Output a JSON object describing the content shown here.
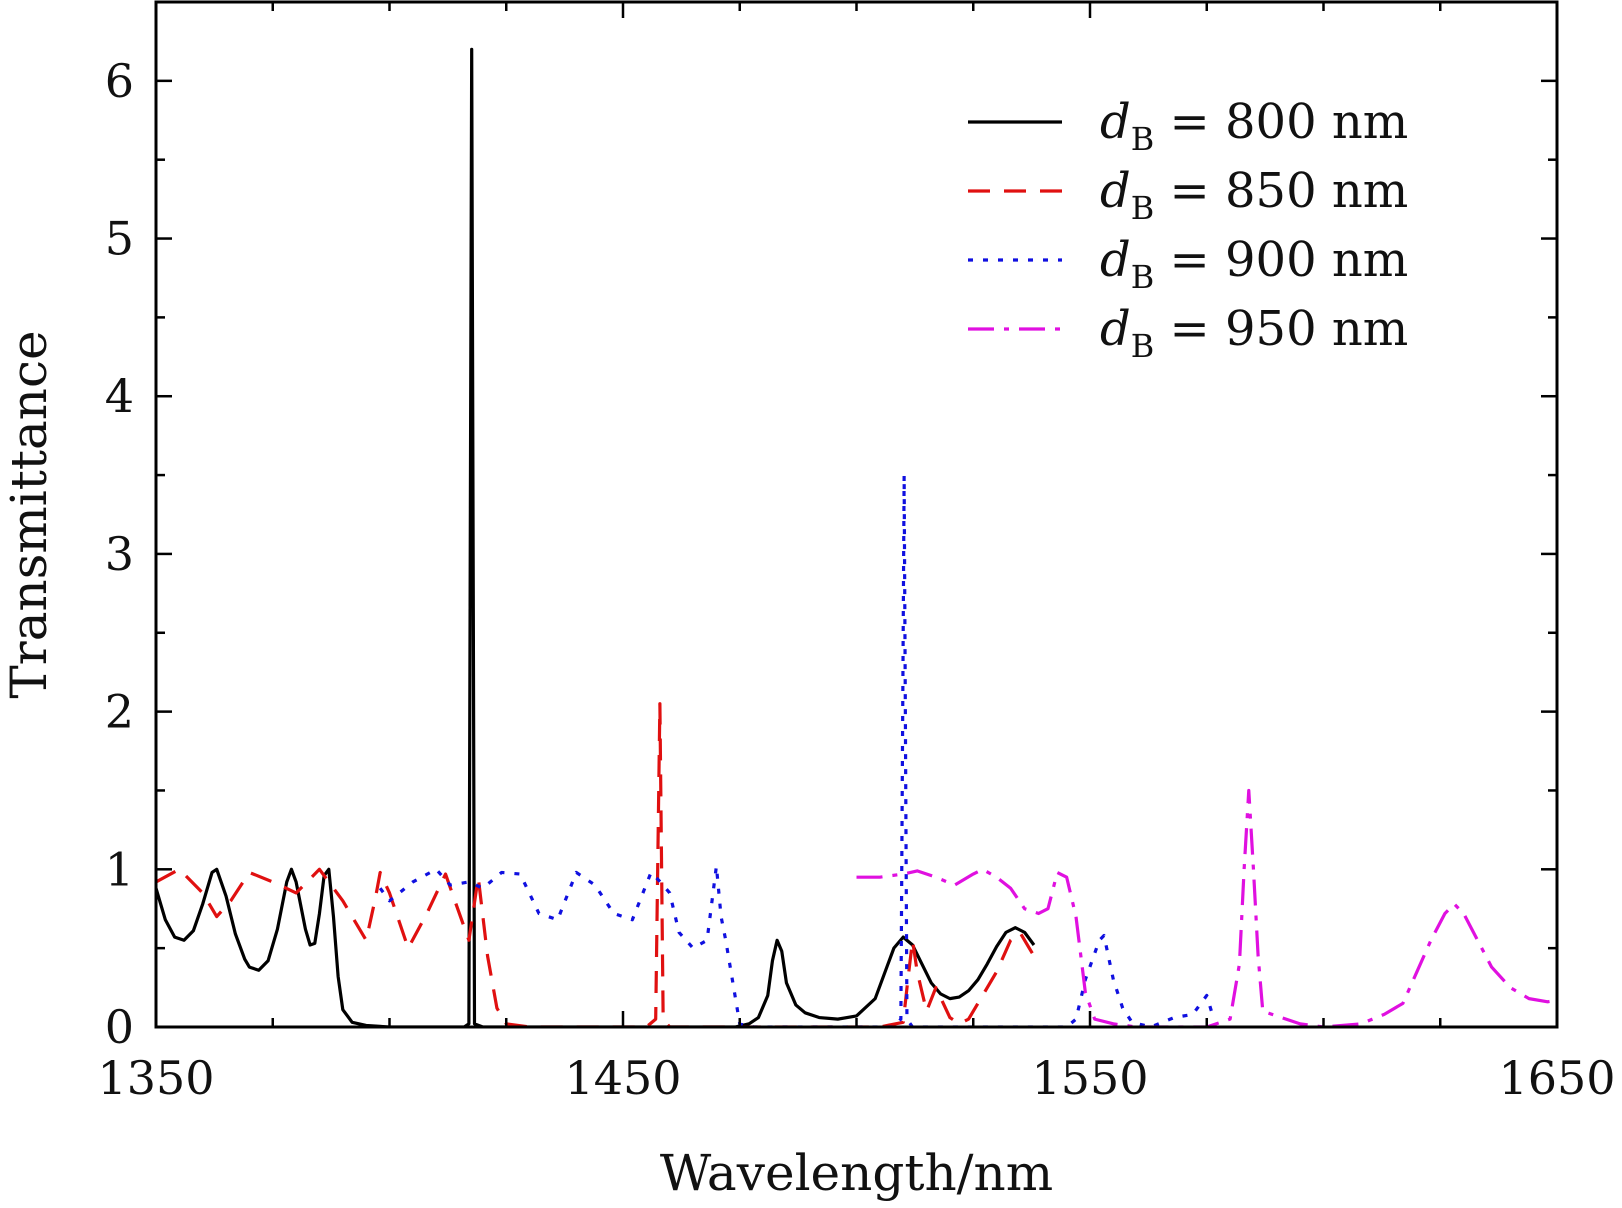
{
  "chart_data": {
    "type": "line",
    "title": "",
    "xlabel": "Wavelength/nm",
    "ylabel": "Transmittance",
    "xlim": [
      1350,
      1650
    ],
    "ylim": [
      0,
      6.5
    ],
    "x_ticks": [
      1350,
      1450,
      1550,
      1650
    ],
    "x_tick_labels": [
      "1350",
      "1450",
      "1550",
      "1650"
    ],
    "y_ticks": [
      0,
      1,
      2,
      3,
      4,
      5,
      6
    ],
    "y_tick_labels": [
      "0",
      "1",
      "2",
      "3",
      "4",
      "5",
      "6"
    ],
    "grid": false,
    "legend_position": "top-right",
    "series": [
      {
        "name": "d_B = 800 nm",
        "label_prefix": "d",
        "label_sub": "B",
        "label_value": " = 800 nm",
        "color": "#000000",
        "dash": "solid",
        "points": [
          [
            1350,
            0.88
          ],
          [
            1352,
            0.68
          ],
          [
            1354,
            0.57
          ],
          [
            1356,
            0.55
          ],
          [
            1358,
            0.61
          ],
          [
            1360,
            0.78
          ],
          [
            1362,
            0.98
          ],
          [
            1363,
            1.0
          ],
          [
            1365,
            0.83
          ],
          [
            1367,
            0.59
          ],
          [
            1369,
            0.43
          ],
          [
            1370,
            0.38
          ],
          [
            1372,
            0.36
          ],
          [
            1374,
            0.42
          ],
          [
            1376,
            0.62
          ],
          [
            1378,
            0.92
          ],
          [
            1379,
            1.0
          ],
          [
            1380,
            0.92
          ],
          [
            1382,
            0.62
          ],
          [
            1383,
            0.52
          ],
          [
            1384,
            0.53
          ],
          [
            1385,
            0.72
          ],
          [
            1386,
            0.96
          ],
          [
            1387,
            1.0
          ],
          [
            1388,
            0.7
          ],
          [
            1389,
            0.32
          ],
          [
            1390,
            0.11
          ],
          [
            1392,
            0.03
          ],
          [
            1395,
            0.01
          ],
          [
            1400,
            0.0
          ],
          [
            1416,
            0.0
          ],
          [
            1417,
            0.02
          ],
          [
            1417.6,
            6.2
          ],
          [
            1418.2,
            0.02
          ],
          [
            1420,
            0.0
          ],
          [
            1470,
            0.0
          ],
          [
            1474,
            0.0
          ],
          [
            1477,
            0.02
          ],
          [
            1479,
            0.06
          ],
          [
            1481,
            0.2
          ],
          [
            1482,
            0.42
          ],
          [
            1483,
            0.55
          ],
          [
            1484,
            0.48
          ],
          [
            1485,
            0.28
          ],
          [
            1487,
            0.14
          ],
          [
            1489,
            0.09
          ],
          [
            1492,
            0.06
          ],
          [
            1496,
            0.05
          ],
          [
            1500,
            0.07
          ],
          [
            1504,
            0.18
          ],
          [
            1506,
            0.34
          ],
          [
            1508,
            0.5
          ],
          [
            1510,
            0.57
          ],
          [
            1512,
            0.52
          ],
          [
            1514,
            0.4
          ],
          [
            1516,
            0.28
          ],
          [
            1518,
            0.21
          ],
          [
            1520,
            0.18
          ],
          [
            1522,
            0.19
          ],
          [
            1524,
            0.23
          ],
          [
            1526,
            0.3
          ],
          [
            1528,
            0.4
          ],
          [
            1530,
            0.51
          ],
          [
            1532,
            0.6
          ],
          [
            1534,
            0.63
          ],
          [
            1536,
            0.6
          ],
          [
            1538,
            0.52
          ]
        ]
      },
      {
        "name": "d_B = 850 nm",
        "label_prefix": "d",
        "label_sub": "B",
        "label_value": " = 850 nm",
        "color": "#e01010",
        "dash": "22 14",
        "points": [
          [
            1350,
            0.92
          ],
          [
            1355,
            1.0
          ],
          [
            1360,
            0.85
          ],
          [
            1363,
            0.7
          ],
          [
            1366,
            0.8
          ],
          [
            1370,
            0.98
          ],
          [
            1375,
            0.92
          ],
          [
            1380,
            0.85
          ],
          [
            1385,
            1.0
          ],
          [
            1390,
            0.8
          ],
          [
            1395,
            0.55
          ],
          [
            1397,
            0.82
          ],
          [
            1398,
            0.98
          ],
          [
            1400,
            0.85
          ],
          [
            1404,
            0.5
          ],
          [
            1408,
            0.72
          ],
          [
            1412,
            0.97
          ],
          [
            1414,
            0.8
          ],
          [
            1417,
            0.55
          ],
          [
            1419,
            0.95
          ],
          [
            1421,
            0.45
          ],
          [
            1423,
            0.12
          ],
          [
            1425,
            0.02
          ],
          [
            1430,
            0.0
          ],
          [
            1455,
            0.0
          ],
          [
            1457,
            0.05
          ],
          [
            1457.9,
            2.05
          ],
          [
            1458.6,
            0.05
          ],
          [
            1460,
            0.0
          ],
          [
            1505,
            0.0
          ],
          [
            1510,
            0.03
          ],
          [
            1511,
            0.3
          ],
          [
            1512,
            0.55
          ],
          [
            1513,
            0.35
          ],
          [
            1515,
            0.1
          ],
          [
            1517,
            0.25
          ],
          [
            1520,
            0.06
          ],
          [
            1522,
            0.02
          ],
          [
            1524,
            0.05
          ],
          [
            1526,
            0.15
          ],
          [
            1530,
            0.35
          ],
          [
            1533,
            0.55
          ],
          [
            1535,
            0.6
          ],
          [
            1537,
            0.5
          ],
          [
            1538,
            0.45
          ]
        ]
      },
      {
        "name": "d_B = 900 nm",
        "label_prefix": "d",
        "label_sub": "B",
        "label_value": " = 900 nm",
        "color": "#1010e0",
        "dash": "5 10",
        "points": [
          [
            1398,
            0.88
          ],
          [
            1400,
            0.8
          ],
          [
            1405,
            0.92
          ],
          [
            1410,
            1.0
          ],
          [
            1413,
            0.9
          ],
          [
            1417,
            0.92
          ],
          [
            1420,
            0.88
          ],
          [
            1424,
            0.98
          ],
          [
            1428,
            0.97
          ],
          [
            1432,
            0.72
          ],
          [
            1436,
            0.68
          ],
          [
            1440,
            0.98
          ],
          [
            1444,
            0.9
          ],
          [
            1448,
            0.72
          ],
          [
            1452,
            0.68
          ],
          [
            1456,
            0.98
          ],
          [
            1458,
            0.92
          ],
          [
            1460,
            0.85
          ],
          [
            1462,
            0.6
          ],
          [
            1465,
            0.5
          ],
          [
            1468,
            0.55
          ],
          [
            1470,
            1.02
          ],
          [
            1471,
            0.7
          ],
          [
            1472,
            0.55
          ],
          [
            1475,
            0.02
          ],
          [
            1478,
            0.0
          ],
          [
            1508,
            0.0
          ],
          [
            1509.5,
            0.05
          ],
          [
            1510.2,
            3.5
          ],
          [
            1510.8,
            0.05
          ],
          [
            1512,
            0.0
          ],
          [
            1545,
            0.0
          ],
          [
            1547,
            0.05
          ],
          [
            1549,
            0.3
          ],
          [
            1552,
            0.55
          ],
          [
            1553,
            0.58
          ],
          [
            1555,
            0.3
          ],
          [
            1557,
            0.12
          ],
          [
            1559,
            0.03
          ],
          [
            1563,
            0.0
          ],
          [
            1568,
            0.06
          ],
          [
            1572,
            0.08
          ],
          [
            1575,
            0.2
          ],
          [
            1576,
            0.1
          ]
        ]
      },
      {
        "name": "d_B = 950 nm",
        "label_prefix": "d",
        "label_sub": "B",
        "label_value": " = 950 nm",
        "color": "#e010e0",
        "dash": "26 10 5 10",
        "points": [
          [
            1500,
            0.95
          ],
          [
            1505,
            0.95
          ],
          [
            1510,
            0.97
          ],
          [
            1513,
            0.99
          ],
          [
            1517,
            0.95
          ],
          [
            1521,
            0.9
          ],
          [
            1525,
            0.97
          ],
          [
            1527,
            1.0
          ],
          [
            1530,
            0.95
          ],
          [
            1533,
            0.88
          ],
          [
            1536,
            0.75
          ],
          [
            1539,
            0.72
          ],
          [
            1541,
            0.75
          ],
          [
            1543,
            0.98
          ],
          [
            1545,
            0.95
          ],
          [
            1547,
            0.7
          ],
          [
            1549,
            0.22
          ],
          [
            1551,
            0.05
          ],
          [
            1555,
            0.02
          ],
          [
            1560,
            0.0
          ],
          [
            1575,
            0.0
          ],
          [
            1580,
            0.05
          ],
          [
            1582,
            0.4
          ],
          [
            1583,
            1.0
          ],
          [
            1584,
            1.5
          ],
          [
            1585,
            1.0
          ],
          [
            1586,
            0.45
          ],
          [
            1587,
            0.1
          ],
          [
            1590,
            0.07
          ],
          [
            1595,
            0.02
          ],
          [
            1600,
            0.0
          ],
          [
            1608,
            0.02
          ],
          [
            1613,
            0.08
          ],
          [
            1617,
            0.15
          ],
          [
            1620,
            0.35
          ],
          [
            1623,
            0.55
          ],
          [
            1626,
            0.72
          ],
          [
            1628,
            0.78
          ],
          [
            1630,
            0.72
          ],
          [
            1633,
            0.55
          ],
          [
            1636,
            0.38
          ],
          [
            1640,
            0.25
          ],
          [
            1644,
            0.18
          ],
          [
            1648,
            0.16
          ],
          [
            1650,
            0.17
          ]
        ]
      }
    ]
  }
}
